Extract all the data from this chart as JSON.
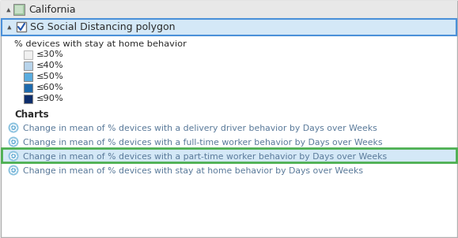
{
  "bg_color": "#f0f0f0",
  "title_row": "California",
  "sg_label": "SG Social Distancing polygon",
  "sg_row_bg": "#d4e8f7",
  "sg_row_border": "#4a90d9",
  "legend_title": "% devices with stay at home behavior",
  "legend_items": [
    {
      "label": "≤30%",
      "color": "#f0f0f0",
      "edge": "#bbbbbb"
    },
    {
      "label": "≤40%",
      "color": "#b8d4eb",
      "edge": "#999999"
    },
    {
      "label": "≤50%",
      "color": "#5aade0",
      "edge": "#888888"
    },
    {
      "label": "≤60%",
      "color": "#1d6aad",
      "edge": "#888888"
    },
    {
      "label": "≤90%",
      "color": "#0d2d6b",
      "edge": "#888888"
    }
  ],
  "charts_title": "Charts",
  "chart_items": [
    {
      "label": "Change in mean of % devices with a delivery driver behavior by Days over Weeks",
      "highlighted": false
    },
    {
      "label": "Change in mean of % devices with a full-time worker behavior by Days over Weeks",
      "highlighted": false
    },
    {
      "label": "Change in mean of % devices with a part-time worker behavior by Days over Weeks",
      "highlighted": true
    },
    {
      "label": "Change in mean of % devices with stay at home behavior by Days over Weeks",
      "highlighted": false
    }
  ],
  "highlight_bg": "#d4e8f7",
  "highlight_border": "#4caf50",
  "icon_color_outer": "#8ec4e0",
  "icon_color_inner": "#6aafd6",
  "text_color": "#2c2c2c",
  "chart_text_color": "#5a7a9a",
  "header_bg": "#e8e8e8",
  "white": "#ffffff",
  "panel_border": "#b0b0b0"
}
